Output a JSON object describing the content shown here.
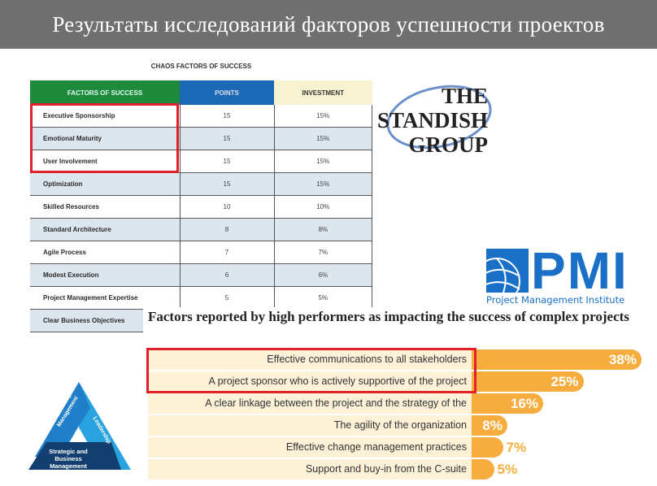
{
  "title": "Результаты исследований факторов успешности проектов",
  "chaos": {
    "title": "CHAOS FACTORS OF SUCCESS",
    "headers": [
      "FACTORS OF SUCCESS",
      "POINTS",
      "INVESTMENT"
    ],
    "rows": [
      [
        "Executive Sponsorship",
        "15",
        "15%"
      ],
      [
        "Emotional Maturity",
        "15",
        "15%"
      ],
      [
        "User Involvement",
        "15",
        "15%"
      ],
      [
        "Optimization",
        "15",
        "15%"
      ],
      [
        "Skilled Resources",
        "10",
        "10%"
      ],
      [
        "Standard Architecture",
        "8",
        "8%"
      ],
      [
        "Agile Process",
        "7",
        "7%"
      ],
      [
        "Modest Execution",
        "6",
        "6%"
      ],
      [
        "Project Management Expertise",
        "5",
        "5%"
      ],
      [
        "Clear Business Objectives",
        "",
        ""
      ]
    ],
    "highlight_color": "#e0202a"
  },
  "logos": {
    "standish": [
      "THE",
      "STANDISH",
      "GROUP"
    ],
    "pmi": "PMI",
    "pmi_name": "Project Management Institute",
    "triangle": [
      "Technical Project Management",
      "Leadership",
      "Strategic and Business Management"
    ]
  },
  "chart_data": {
    "type": "bar",
    "title": "Factors reported by high performers as impacting the success of complex projects",
    "categories": [
      "Effective communications to all stakeholders",
      "A project sponsor who is actively supportive of the project",
      "A clear linkage between the project and the strategy of the organization",
      "The agility of the organization",
      "Effective change management practices",
      "Support and buy-in from the C-suite"
    ],
    "values": [
      38,
      25,
      16,
      8,
      7,
      5
    ],
    "labels": [
      "38%",
      "25%",
      "16%",
      "8%",
      "7%",
      "5%"
    ],
    "bar_color": "#f6ad3e"
  }
}
